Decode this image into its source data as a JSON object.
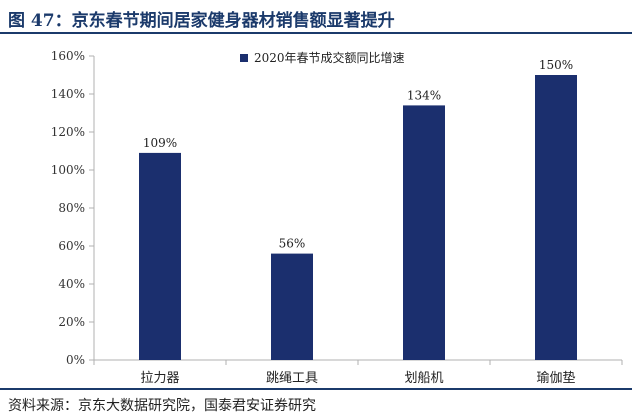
{
  "header": {
    "title": "图 47：京东春节期间居家健身器材销售额显著提升"
  },
  "footer": {
    "source": "资料来源：京东大数据研究院，国泰君安证券研究"
  },
  "colors": {
    "bar": "#1b2f6e",
    "accent": "#1b3a6b"
  },
  "chart_data": {
    "type": "bar",
    "categories": [
      "拉力器",
      "跳绳工具",
      "划船机",
      "瑜伽垫"
    ],
    "series": [
      {
        "name": "2020年春节成交额同比增速",
        "values": [
          109,
          56,
          134,
          150
        ],
        "value_labels": [
          "109%",
          "56%",
          "134%",
          "150%"
        ]
      }
    ],
    "ylim": [
      0,
      160
    ],
    "yticks": [
      0,
      20,
      40,
      60,
      80,
      100,
      120,
      140,
      160
    ],
    "ytick_labels": [
      "0%",
      "20%",
      "40%",
      "60%",
      "80%",
      "100%",
      "120%",
      "140%",
      "160%"
    ],
    "grid": false,
    "legend": "top-center"
  }
}
